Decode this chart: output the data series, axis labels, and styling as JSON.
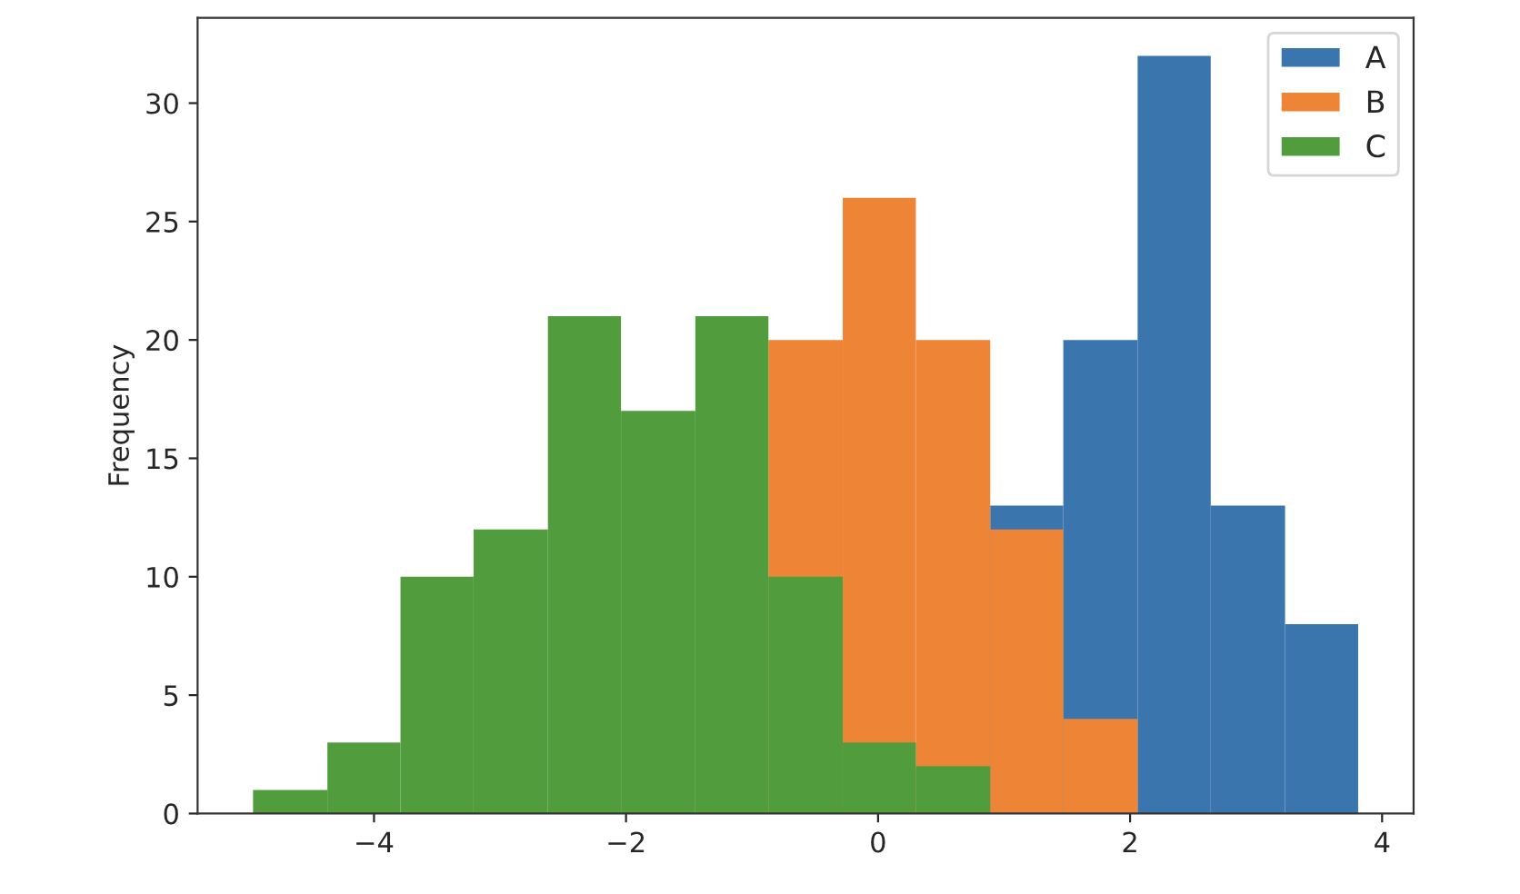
{
  "chart_data": {
    "type": "histogram",
    "ylabel": "Frequency",
    "bins": [
      -4.96,
      -4.37,
      -3.79,
      -3.21,
      -2.62,
      -2.04,
      -1.45,
      -0.87,
      -0.28,
      0.3,
      0.89,
      1.47,
      2.06,
      2.64,
      3.23,
      3.81
    ],
    "series": [
      {
        "name": "A",
        "color": "#3a75ae",
        "values": [
          null,
          null,
          null,
          null,
          null,
          null,
          null,
          null,
          null,
          null,
          13,
          20,
          32,
          13,
          8
        ]
      },
      {
        "name": "B",
        "color": "#ee8536",
        "values": [
          null,
          null,
          null,
          null,
          null,
          null,
          null,
          20,
          26,
          20,
          12,
          4,
          0,
          0,
          0
        ]
      },
      {
        "name": "C",
        "color": "#519d3e",
        "values": [
          1,
          3,
          10,
          12,
          21,
          17,
          21,
          10,
          3,
          2,
          0,
          0,
          0,
          0,
          0
        ]
      }
    ],
    "xlim": [
      -5.4,
      4.25
    ],
    "xticks": [
      {
        "value": -4,
        "label": "−4"
      },
      {
        "value": -2,
        "label": "−2"
      },
      0,
      2,
      4
    ],
    "ylim": [
      0,
      33.6
    ],
    "yticks": [
      0,
      5,
      10,
      15,
      20,
      25,
      30
    ],
    "grid": false,
    "legend": "top right"
  }
}
